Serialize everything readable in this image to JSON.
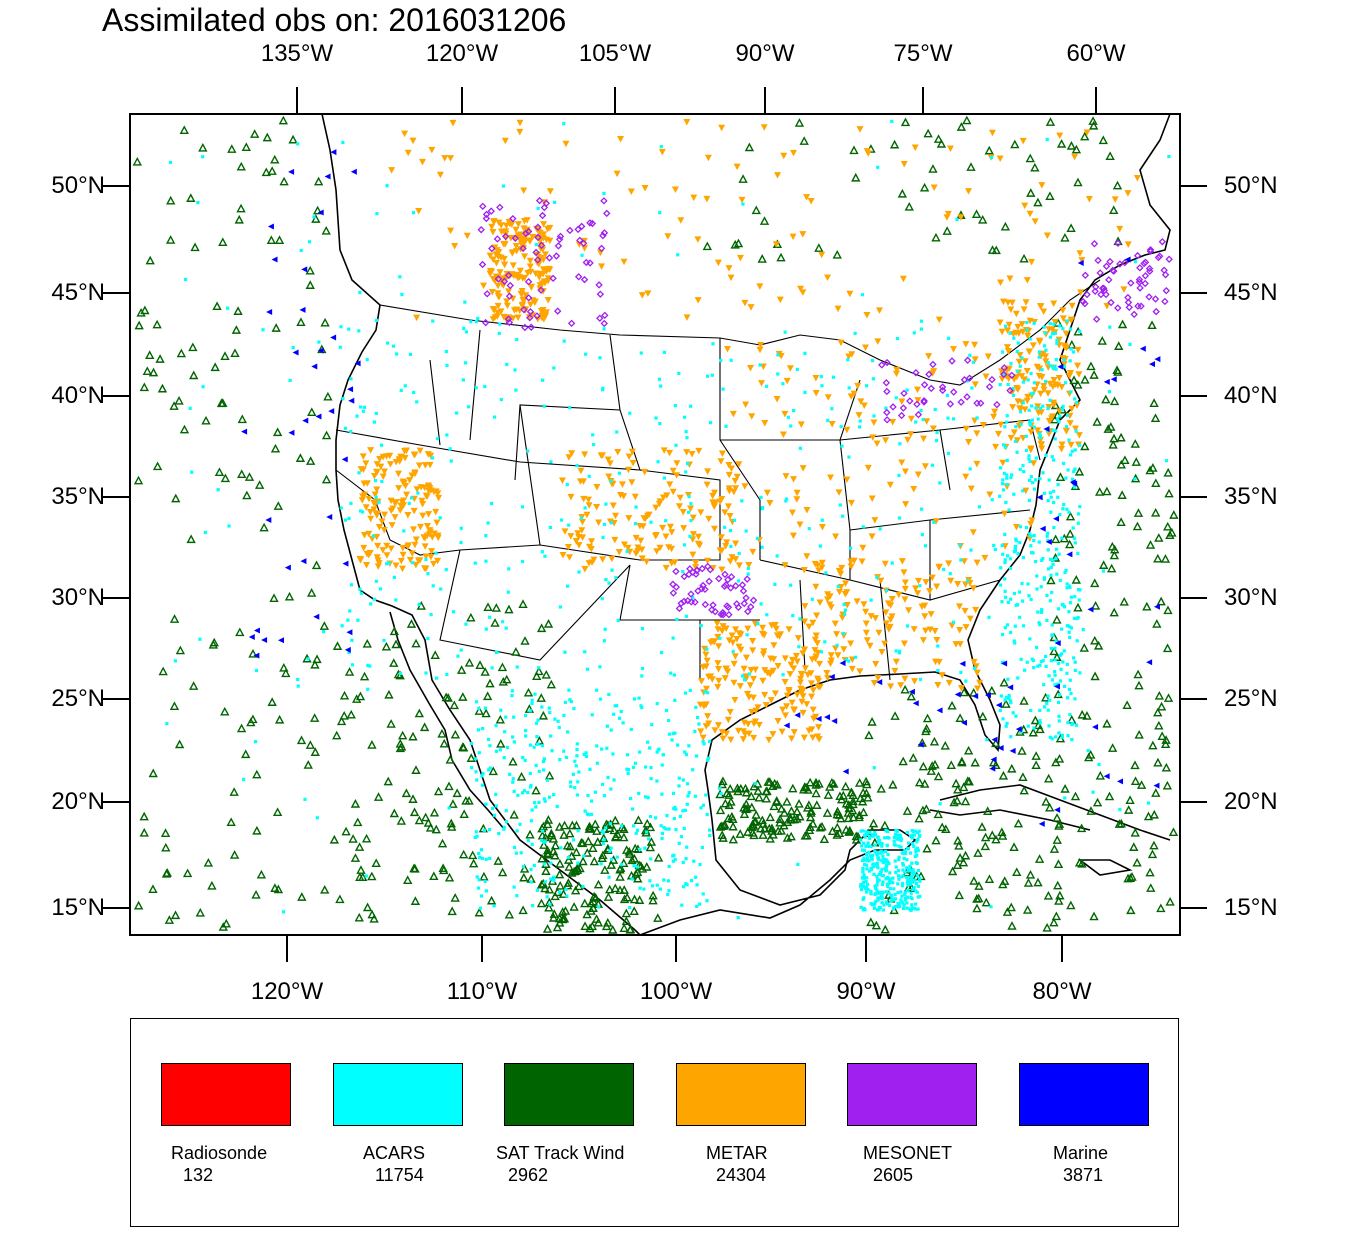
{
  "title": "Assimilated obs on: 2016031206",
  "map": {
    "top_lon_labels": [
      "135°W",
      "120°W",
      "105°W",
      "90°W",
      "75°W",
      "60°W"
    ],
    "bottom_lon_labels": [
      "120°W",
      "110°W",
      "100°W",
      "90°W",
      "80°W"
    ],
    "lat_labels": [
      "50°N",
      "45°N",
      "40°N",
      "35°N",
      "30°N",
      "25°N",
      "20°N",
      "15°N"
    ]
  },
  "legend": [
    {
      "label": "Radiosonde",
      "count": "132",
      "color": "#ff0000"
    },
    {
      "label": "ACARS",
      "count": "11754",
      "color": "#00ffff"
    },
    {
      "label": "SAT Track Wind",
      "count": "2962",
      "color": "#006400"
    },
    {
      "label": "METAR",
      "count": "24304",
      "color": "#ffa500"
    },
    {
      "label": "MESONET",
      "count": "2605",
      "color": "#a020f0"
    },
    {
      "label": "Marine",
      "count": "3871",
      "color": "#0000ff"
    }
  ]
}
